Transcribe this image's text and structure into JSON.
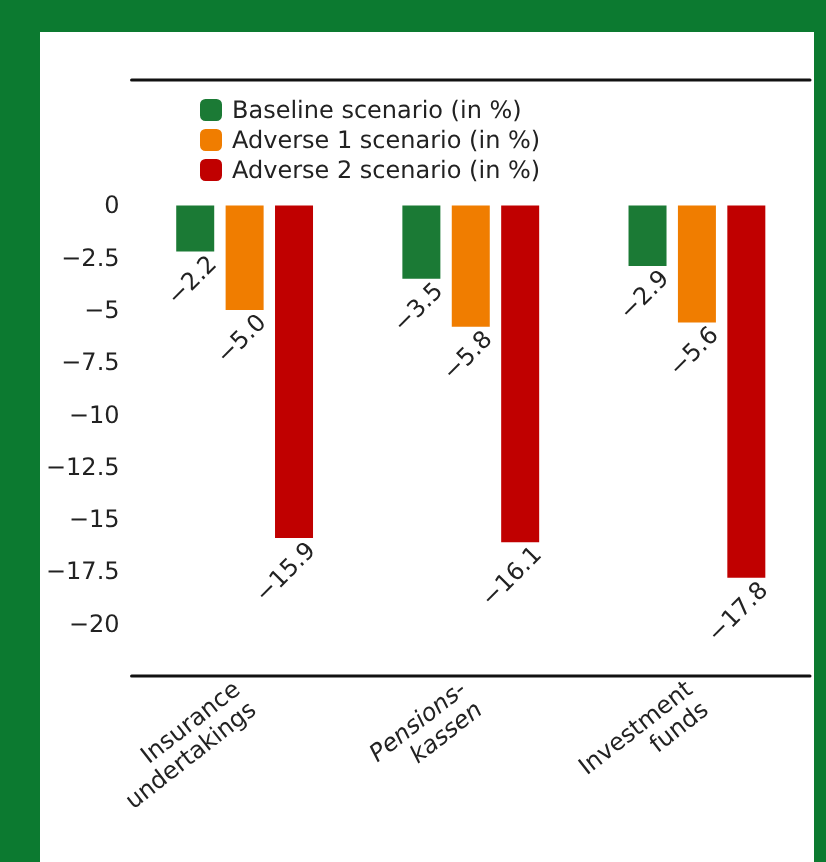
{
  "chart_data": {
    "type": "bar",
    "categories": [
      "Insurance\nundertakings",
      "Pensions-\nkassen",
      "Investment\nfunds"
    ],
    "series": [
      {
        "name": "Baseline scenario (in %)",
        "color": "#1b7a35",
        "values": [
          -2.2,
          -3.5,
          -2.9
        ],
        "value_labels": [
          "−2.2",
          "−3.5",
          "−2.9"
        ]
      },
      {
        "name": "Adverse 1 scenario (in %)",
        "color": "#f07d00",
        "values": [
          -5.0,
          -5.8,
          -5.6
        ],
        "value_labels": [
          "−5.0",
          "−5.8",
          "−5.6"
        ]
      },
      {
        "name": "Adverse 2 scenario (in %)",
        "color": "#c00000",
        "values": [
          -15.9,
          -16.1,
          -17.8
        ],
        "value_labels": [
          "−15.9",
          "−16.1",
          "−17.8"
        ]
      }
    ],
    "ylim": [
      -22.5,
      6
    ],
    "yticks": [
      0,
      {
        "value": -2.5,
        "label": "−2.5"
      },
      {
        "value": -5,
        "label": "−5"
      },
      {
        "value": -7.5,
        "label": "−7.5"
      },
      {
        "value": -10,
        "label": "−10"
      },
      {
        "value": -12.5,
        "label": "−12.5"
      },
      {
        "value": -15,
        "label": "−15"
      },
      {
        "value": -17.5,
        "label": "−17.5"
      },
      {
        "value": -20,
        "label": "−20"
      }
    ],
    "grid": false,
    "legend": "top left"
  }
}
